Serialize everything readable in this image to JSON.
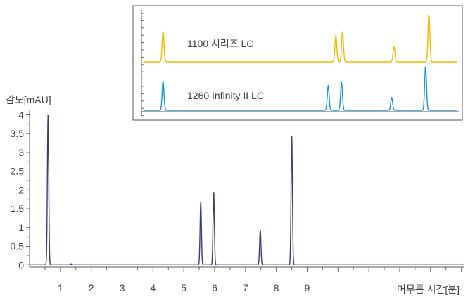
{
  "chart_data": {
    "type": "line",
    "ylabel": "감도[mAU]",
    "xlabel": "머무름 시간[분]",
    "xlim": [
      0,
      14.1
    ],
    "ylim": [
      -0.05,
      4.1
    ],
    "x_ticks": [
      1,
      2,
      3,
      4,
      5,
      6,
      7,
      8,
      9
    ],
    "y_ticks": [
      0,
      0.5,
      1,
      1.5,
      2,
      2.5,
      3,
      3.5,
      4
    ],
    "y_tick_labels": [
      "0",
      "0.5",
      "1",
      "1.5",
      "2",
      "2.5",
      "3",
      "3.5",
      "4"
    ],
    "grid": false,
    "main_series": {
      "color": "#3b3b7a",
      "baseline": 0,
      "peaks": [
        {
          "x": 0.6,
          "height": 4.0
        },
        {
          "x": 1.35,
          "height": 0.02
        },
        {
          "x": 5.55,
          "height": 1.68
        },
        {
          "x": 5.97,
          "height": 1.93
        },
        {
          "x": 7.48,
          "height": 0.93
        },
        {
          "x": 8.5,
          "height": 3.45
        }
      ]
    },
    "inset": {
      "series": [
        {
          "name": "1100 시리즈 LC",
          "color": "#f5b800",
          "peaks": [
            {
              "x": 0.6,
              "height": 0.9
            },
            {
              "x": 5.8,
              "height": 0.78
            },
            {
              "x": 6.0,
              "height": 0.88
            },
            {
              "x": 7.55,
              "height": 0.45
            },
            {
              "x": 8.6,
              "height": 1.4
            }
          ]
        },
        {
          "name": "1260 Infinity II LC",
          "color": "#1596d0",
          "peaks": [
            {
              "x": 0.6,
              "height": 0.85
            },
            {
              "x": 5.57,
              "height": 0.72
            },
            {
              "x": 5.97,
              "height": 0.82
            },
            {
              "x": 7.48,
              "height": 0.38
            },
            {
              "x": 8.5,
              "height": 1.3
            }
          ]
        }
      ]
    }
  }
}
